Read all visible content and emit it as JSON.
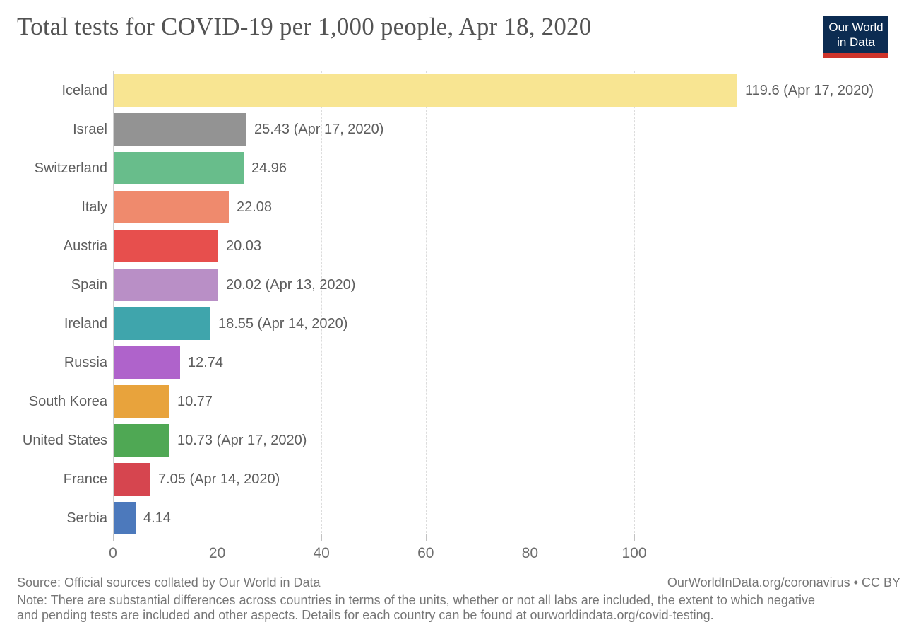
{
  "header": {
    "title": "Total tests for COVID-19 per 1,000 people, Apr 18, 2020",
    "logo": {
      "line1": "Our World",
      "line2": "in Data",
      "background_color": "#0c2c52",
      "stripe_color": "#ce342b"
    }
  },
  "chart_data": {
    "type": "bar",
    "orientation": "horizontal",
    "title": "Total tests for COVID-19 per 1,000 people, Apr 18, 2020",
    "categories": [
      "Iceland",
      "Israel",
      "Switzerland",
      "Italy",
      "Austria",
      "Spain",
      "Ireland",
      "Russia",
      "South Korea",
      "United States",
      "France",
      "Serbia"
    ],
    "values": [
      119.6,
      25.43,
      24.96,
      22.08,
      20.03,
      20.02,
      18.55,
      12.74,
      10.77,
      10.73,
      7.05,
      4.14
    ],
    "value_labels": [
      "119.6 (Apr 17, 2020)",
      "25.43 (Apr 17, 2020)",
      "24.96",
      "22.08",
      "20.03",
      "20.02 (Apr 13, 2020)",
      "18.55 (Apr 14, 2020)",
      "12.74",
      "10.77",
      "10.73 (Apr 17, 2020)",
      "7.05 (Apr 14, 2020)",
      "4.14"
    ],
    "bar_colors": [
      "#F8E592",
      "#939393",
      "#68BD8B",
      "#EF8A6D",
      "#E74F4D",
      "#B98FC6",
      "#3FA5AC",
      "#AF63CB",
      "#E8A33C",
      "#4FA854",
      "#D6454F",
      "#4C79BC"
    ],
    "x_ticks": [
      0,
      20,
      40,
      60,
      80,
      100
    ],
    "xlim": [
      0,
      151
    ],
    "xlabel": "",
    "ylabel": "",
    "grid": "vertical-dashed",
    "legend": "none"
  },
  "footer": {
    "source": "Source: Official sources collated by Our World in Data",
    "credit": "OurWorldInData.org/coronavirus • CC BY",
    "note_line1": "Note: There are substantial differences across countries in terms of the units, whether or not all labs are included, the extent to which negative",
    "note_line2": "and pending tests are included and other aspects. Details for each country can be found at ourworldindata.org/covid-testing."
  }
}
